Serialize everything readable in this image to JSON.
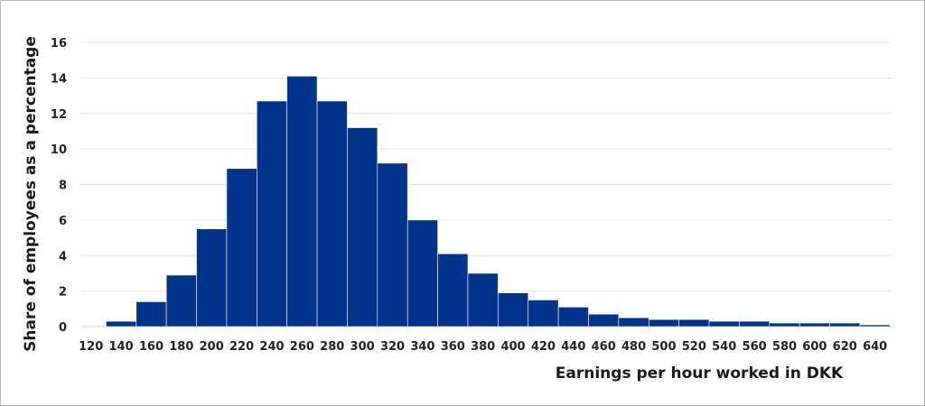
{
  "chart_data": {
    "type": "bar",
    "title": "",
    "xlabel": "Earnings per hour worked in DKK",
    "ylabel": "Share of employees as a percentage",
    "ylim": [
      0,
      16
    ],
    "yticks": [
      "0",
      "2",
      "4",
      "6",
      "8",
      "10",
      "12",
      "14",
      "16"
    ],
    "xticks": [
      "120",
      "140",
      "160",
      "180",
      "200",
      "220",
      "240",
      "260",
      "280",
      "300",
      "320",
      "340",
      "360",
      "380",
      "400",
      "420",
      "440",
      "460",
      "480",
      "500",
      "520",
      "540",
      "560",
      "580",
      "600",
      "620",
      "640"
    ],
    "bin_width": 20,
    "bins": [
      {
        "start": 130,
        "value": 0.3
      },
      {
        "start": 150,
        "value": 1.4
      },
      {
        "start": 170,
        "value": 2.9
      },
      {
        "start": 190,
        "value": 5.5
      },
      {
        "start": 210,
        "value": 8.9
      },
      {
        "start": 230,
        "value": 12.7
      },
      {
        "start": 250,
        "value": 14.1
      },
      {
        "start": 270,
        "value": 12.7
      },
      {
        "start": 290,
        "value": 11.2
      },
      {
        "start": 310,
        "value": 9.2
      },
      {
        "start": 330,
        "value": 6.0
      },
      {
        "start": 350,
        "value": 4.1
      },
      {
        "start": 370,
        "value": 3.0
      },
      {
        "start": 390,
        "value": 1.9
      },
      {
        "start": 410,
        "value": 1.5
      },
      {
        "start": 430,
        "value": 1.1
      },
      {
        "start": 450,
        "value": 0.7
      },
      {
        "start": 470,
        "value": 0.5
      },
      {
        "start": 490,
        "value": 0.4
      },
      {
        "start": 510,
        "value": 0.4
      },
      {
        "start": 530,
        "value": 0.3
      },
      {
        "start": 550,
        "value": 0.3
      },
      {
        "start": 570,
        "value": 0.2
      },
      {
        "start": 590,
        "value": 0.2
      },
      {
        "start": 610,
        "value": 0.2
      },
      {
        "start": 630,
        "value": 0.1
      }
    ],
    "grid": true,
    "colors": {
      "bar": "#00338a",
      "grid": "#e6e6e6",
      "border": "#b9b9b9"
    }
  }
}
